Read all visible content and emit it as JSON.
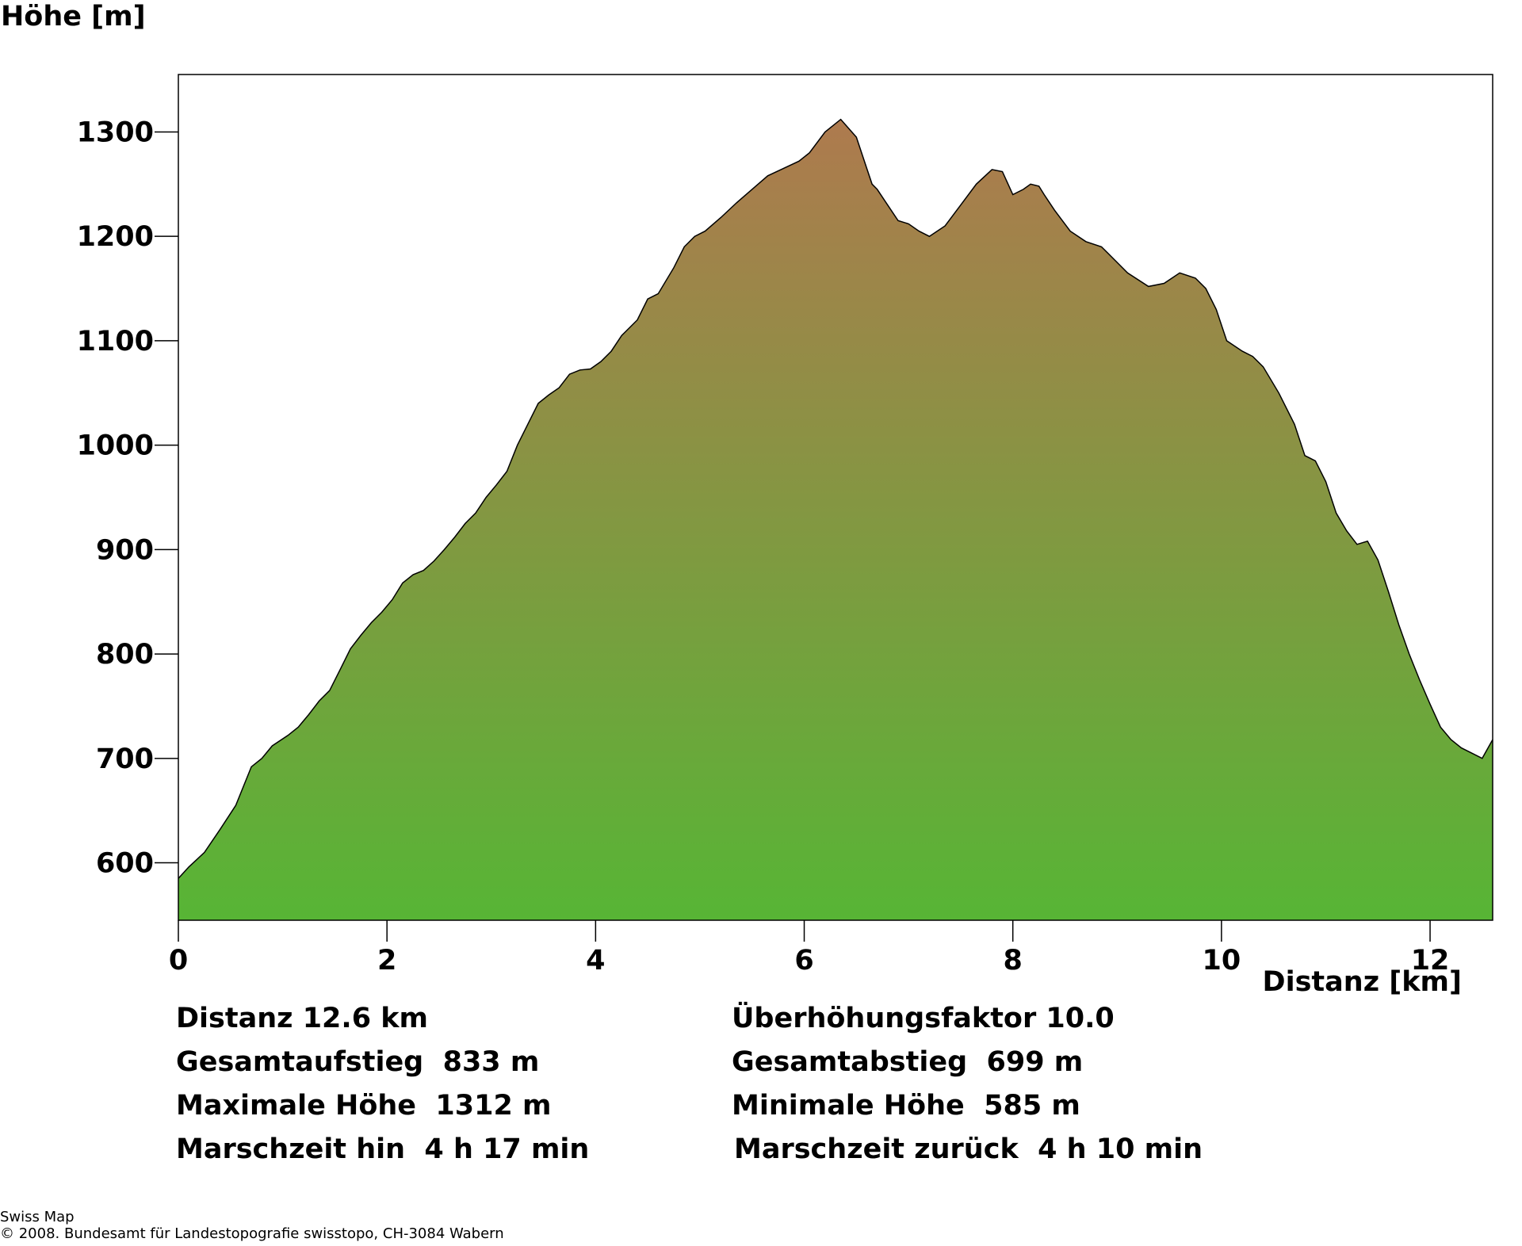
{
  "chart_data": {
    "type": "area",
    "ylabel": "Höhe [m]",
    "xlabel": "Distanz [km]",
    "xlim": [
      0,
      12.6
    ],
    "ylim": [
      545,
      1355
    ],
    "x_ticks": [
      0,
      2,
      4,
      6,
      8,
      10,
      12
    ],
    "y_ticks": [
      600,
      700,
      800,
      900,
      1000,
      1100,
      1200,
      1300
    ],
    "grid": false,
    "gradient_colors": {
      "low": "#57b535",
      "high": "#ae7a4e"
    },
    "profile": {
      "x": [
        0,
        0.1,
        0.25,
        0.4,
        0.55,
        0.7,
        0.8,
        0.9,
        1.05,
        1.15,
        1.25,
        1.35,
        1.45,
        1.55,
        1.65,
        1.75,
        1.85,
        1.95,
        2.05,
        2.15,
        2.25,
        2.35,
        2.45,
        2.55,
        2.65,
        2.75,
        2.85,
        2.95,
        3.05,
        3.15,
        3.25,
        3.35,
        3.45,
        3.55,
        3.65,
        3.75,
        3.85,
        3.95,
        4.05,
        4.15,
        4.25,
        4.4,
        4.5,
        4.6,
        4.75,
        4.85,
        4.95,
        5.05,
        5.2,
        5.35,
        5.5,
        5.65,
        5.8,
        5.95,
        6.05,
        6.2,
        6.35,
        6.5,
        6.6,
        6.65,
        6.7,
        6.8,
        6.9,
        7.0,
        7.1,
        7.2,
        7.35,
        7.5,
        7.65,
        7.8,
        7.9,
        8.0,
        8.1,
        8.17,
        8.25,
        8.3,
        8.4,
        8.55,
        8.7,
        8.85,
        9.0,
        9.1,
        9.3,
        9.45,
        9.6,
        9.75,
        9.85,
        9.95,
        10.05,
        10.2,
        10.3,
        10.4,
        10.55,
        10.7,
        10.8,
        10.9,
        11.0,
        11.1,
        11.2,
        11.3,
        11.4,
        11.5,
        11.6,
        11.7,
        11.8,
        11.9,
        12.0,
        12.1,
        12.2,
        12.3,
        12.4,
        12.5,
        12.6
      ],
      "y": [
        585,
        596,
        610,
        632,
        655,
        692,
        700,
        712,
        722,
        730,
        742,
        755,
        765,
        785,
        805,
        818,
        830,
        840,
        852,
        868,
        876,
        880,
        889,
        900,
        912,
        925,
        935,
        950,
        962,
        975,
        1000,
        1020,
        1040,
        1048,
        1055,
        1068,
        1072,
        1073,
        1080,
        1090,
        1105,
        1120,
        1140,
        1145,
        1170,
        1190,
        1200,
        1205,
        1218,
        1232,
        1245,
        1258,
        1265,
        1272,
        1280,
        1300,
        1312,
        1295,
        1265,
        1250,
        1245,
        1230,
        1215,
        1212,
        1205,
        1200,
        1210,
        1230,
        1250,
        1264,
        1262,
        1240,
        1245,
        1250,
        1248,
        1240,
        1225,
        1205,
        1195,
        1190,
        1175,
        1165,
        1152,
        1155,
        1165,
        1160,
        1150,
        1130,
        1100,
        1090,
        1085,
        1075,
        1050,
        1020,
        990,
        985,
        965,
        935,
        918,
        905,
        908,
        890,
        860,
        828,
        800,
        775,
        752,
        730,
        718,
        710,
        705,
        700,
        718
      ]
    }
  },
  "stats": {
    "distanz": "Distanz 12.6 km",
    "gesamtaufstieg": "Gesamtaufstieg  833 m",
    "maximale_hoehe": "Maximale Höhe  1312 m",
    "marschzeit_hin": "Marschzeit hin  4 h 17 min",
    "ueberhoehungsfaktor": "Überhöhungsfaktor 10.0",
    "gesamtabstieg": "Gesamtabstieg  699 m",
    "minimale_hoehe": "Minimale Höhe  585 m",
    "marschzeit_zurueck": "Marschzeit zurück  4 h 10 min"
  },
  "footer": {
    "line1": "Swiss Map",
    "line2": "© 2008. Bundesamt für Landestopografie swisstopo, CH-3084 Wabern"
  }
}
